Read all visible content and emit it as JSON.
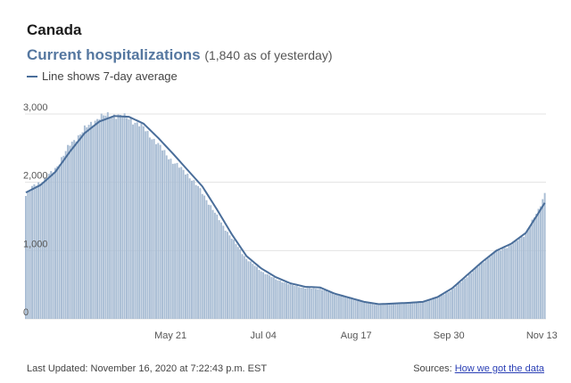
{
  "header": {
    "region": "Canada",
    "metric": "Current hospitalizations",
    "metric_note": "(1,840 as of yesterday)",
    "legend_label": "Line shows 7-day average"
  },
  "footer": {
    "last_updated": "Last Updated: November 16, 2020 at 7:22:43 p.m. EST",
    "sources_label": "Sources:",
    "sources_link": "How we got the data"
  },
  "colors": {
    "bar": "#a9bdd4",
    "line": "#4a6e9a",
    "grid": "#e3e3e3",
    "axis_text": "#555555"
  },
  "chart_data": {
    "type": "bar",
    "overlay": "line",
    "x_start": "2020-03-13",
    "x_end": "2020-11-15",
    "y_ticks": [
      {
        "value": 0,
        "label": "0"
      },
      {
        "value": 1000,
        "label": "1,000"
      },
      {
        "value": 2000,
        "label": "2,000"
      },
      {
        "value": 3000,
        "label": "3,000"
      }
    ],
    "x_ticks": [
      {
        "date": "2020-05-21",
        "label": "May 21"
      },
      {
        "date": "2020-07-04",
        "label": "Jul 04"
      },
      {
        "date": "2020-08-17",
        "label": "Aug 17"
      },
      {
        "date": "2020-09-30",
        "label": "Sep 30"
      },
      {
        "date": "2020-11-13",
        "label": "Nov 13"
      }
    ],
    "ylim": [
      0,
      3000
    ],
    "grid": true,
    "bars_anchors": [
      {
        "date": "2020-03-13",
        "value": 1800
      },
      {
        "date": "2020-03-17",
        "value": 1960
      },
      {
        "date": "2020-03-22",
        "value": 2040
      },
      {
        "date": "2020-03-27",
        "value": 2200
      },
      {
        "date": "2020-04-03",
        "value": 2550
      },
      {
        "date": "2020-04-10",
        "value": 2780
      },
      {
        "date": "2020-04-17",
        "value": 2960
      },
      {
        "date": "2020-04-24",
        "value": 2990
      },
      {
        "date": "2020-05-01",
        "value": 2940
      },
      {
        "date": "2020-05-08",
        "value": 2800
      },
      {
        "date": "2020-05-15",
        "value": 2550
      },
      {
        "date": "2020-05-22",
        "value": 2300
      },
      {
        "date": "2020-05-29",
        "value": 2120
      },
      {
        "date": "2020-06-05",
        "value": 1850
      },
      {
        "date": "2020-06-12",
        "value": 1500
      },
      {
        "date": "2020-06-19",
        "value": 1180
      },
      {
        "date": "2020-06-26",
        "value": 880
      },
      {
        "date": "2020-07-03",
        "value": 700
      },
      {
        "date": "2020-07-10",
        "value": 580
      },
      {
        "date": "2020-07-17",
        "value": 500
      },
      {
        "date": "2020-07-24",
        "value": 450
      },
      {
        "date": "2020-07-31",
        "value": 440
      },
      {
        "date": "2020-08-07",
        "value": 360
      },
      {
        "date": "2020-08-14",
        "value": 300
      },
      {
        "date": "2020-08-21",
        "value": 240
      },
      {
        "date": "2020-08-28",
        "value": 200
      },
      {
        "date": "2020-09-04",
        "value": 220
      },
      {
        "date": "2020-09-11",
        "value": 230
      },
      {
        "date": "2020-09-18",
        "value": 240
      },
      {
        "date": "2020-09-25",
        "value": 310
      },
      {
        "date": "2020-10-02",
        "value": 430
      },
      {
        "date": "2020-10-09",
        "value": 620
      },
      {
        "date": "2020-10-16",
        "value": 820
      },
      {
        "date": "2020-10-23",
        "value": 990
      },
      {
        "date": "2020-10-30",
        "value": 1080
      },
      {
        "date": "2020-11-06",
        "value": 1250
      },
      {
        "date": "2020-11-12",
        "value": 1600
      },
      {
        "date": "2020-11-15",
        "value": 1840
      }
    ],
    "avg_anchors": [
      {
        "date": "2020-03-13",
        "value": 1850
      },
      {
        "date": "2020-03-20",
        "value": 1960
      },
      {
        "date": "2020-03-27",
        "value": 2150
      },
      {
        "date": "2020-04-03",
        "value": 2450
      },
      {
        "date": "2020-04-10",
        "value": 2720
      },
      {
        "date": "2020-04-17",
        "value": 2890
      },
      {
        "date": "2020-04-24",
        "value": 2970
      },
      {
        "date": "2020-05-01",
        "value": 2960
      },
      {
        "date": "2020-05-08",
        "value": 2860
      },
      {
        "date": "2020-05-15",
        "value": 2650
      },
      {
        "date": "2020-05-22",
        "value": 2420
      },
      {
        "date": "2020-05-29",
        "value": 2180
      },
      {
        "date": "2020-06-05",
        "value": 1940
      },
      {
        "date": "2020-06-12",
        "value": 1600
      },
      {
        "date": "2020-06-19",
        "value": 1240
      },
      {
        "date": "2020-06-26",
        "value": 920
      },
      {
        "date": "2020-07-03",
        "value": 740
      },
      {
        "date": "2020-07-10",
        "value": 610
      },
      {
        "date": "2020-07-17",
        "value": 520
      },
      {
        "date": "2020-07-24",
        "value": 470
      },
      {
        "date": "2020-07-31",
        "value": 460
      },
      {
        "date": "2020-08-07",
        "value": 370
      },
      {
        "date": "2020-08-14",
        "value": 310
      },
      {
        "date": "2020-08-21",
        "value": 250
      },
      {
        "date": "2020-08-28",
        "value": 215
      },
      {
        "date": "2020-09-04",
        "value": 225
      },
      {
        "date": "2020-09-11",
        "value": 235
      },
      {
        "date": "2020-09-18",
        "value": 250
      },
      {
        "date": "2020-09-25",
        "value": 320
      },
      {
        "date": "2020-10-02",
        "value": 450
      },
      {
        "date": "2020-10-09",
        "value": 640
      },
      {
        "date": "2020-10-16",
        "value": 830
      },
      {
        "date": "2020-10-23",
        "value": 1000
      },
      {
        "date": "2020-10-30",
        "value": 1100
      },
      {
        "date": "2020-11-06",
        "value": 1260
      },
      {
        "date": "2020-11-12",
        "value": 1550
      },
      {
        "date": "2020-11-15",
        "value": 1700
      }
    ]
  }
}
